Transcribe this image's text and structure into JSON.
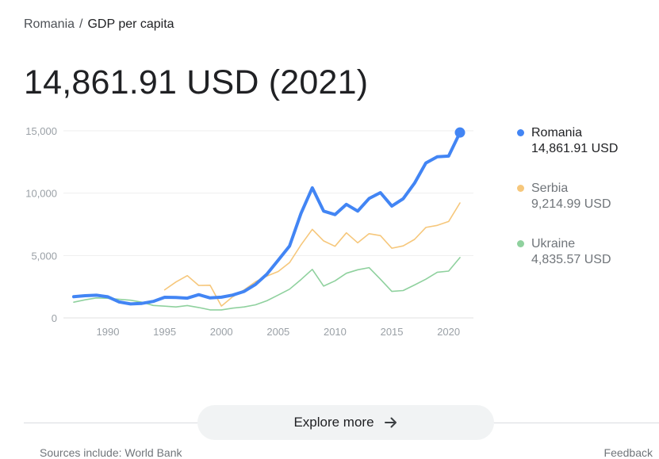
{
  "breadcrumb": {
    "parent": "Romania",
    "separator": "/",
    "current": "GDP per capita"
  },
  "headline": "14,861.91 USD (2021)",
  "legend": [
    {
      "name": "Romania",
      "value": "14,861.91 USD",
      "color": "#4285f4",
      "active": true
    },
    {
      "name": "Serbia",
      "value": "9,214.99 USD",
      "color": "#f6c77b",
      "active": false
    },
    {
      "name": "Ukraine",
      "value": "4,835.57 USD",
      "color": "#8fd19e",
      "active": false
    }
  ],
  "explore_button": {
    "label": "Explore more",
    "icon": "arrow-right-icon"
  },
  "footer": {
    "sources": "Sources include: World Bank",
    "feedback": "Feedback"
  },
  "chart_data": {
    "type": "line",
    "title": "",
    "xlabel": "",
    "ylabel": "",
    "xlim": [
      1987,
      2021
    ],
    "ylim": [
      0,
      15000
    ],
    "x_ticks": [
      1990,
      1995,
      2000,
      2005,
      2010,
      2015,
      2020
    ],
    "y_ticks": [
      0,
      5000,
      10000,
      15000
    ],
    "y_tick_labels": [
      "0",
      "5,000",
      "10,000",
      "15,000"
    ],
    "grid": true,
    "legend_position": "right",
    "series": [
      {
        "name": "Romania",
        "color": "#4285f4",
        "highlight": true,
        "x": [
          1987,
          1988,
          1989,
          1990,
          1991,
          1992,
          1993,
          1994,
          1995,
          1996,
          1997,
          1998,
          1999,
          2000,
          2001,
          2002,
          2003,
          2004,
          2005,
          2006,
          2007,
          2008,
          2009,
          2010,
          2011,
          2012,
          2013,
          2014,
          2015,
          2016,
          2017,
          2018,
          2019,
          2020,
          2021
        ],
        "y": [
          1700,
          1780,
          1820,
          1690,
          1280,
          1120,
          1160,
          1320,
          1650,
          1640,
          1580,
          1860,
          1600,
          1660,
          1830,
          2120,
          2680,
          3500,
          4620,
          5760,
          8370,
          10430,
          8560,
          8280,
          9100,
          8560,
          9570,
          10040,
          8970,
          9550,
          10800,
          12420,
          12920,
          12970,
          14861.91
        ]
      },
      {
        "name": "Serbia",
        "color": "#f6c77b",
        "highlight": false,
        "x": [
          1995,
          1996,
          1997,
          1998,
          1999,
          2000,
          2001,
          2002,
          2003,
          2004,
          2005,
          2006,
          2007,
          2008,
          2009,
          2010,
          2011,
          2012,
          2013,
          2014,
          2015,
          2016,
          2017,
          2018,
          2019,
          2020,
          2021
        ],
        "y": [
          2250,
          2880,
          3390,
          2600,
          2620,
          950,
          1700,
          2250,
          2900,
          3350,
          3720,
          4430,
          5850,
          7100,
          6170,
          5740,
          6820,
          6020,
          6750,
          6600,
          5590,
          5770,
          6290,
          7250,
          7420,
          7730,
          9214.99
        ]
      },
      {
        "name": "Ukraine",
        "color": "#8fd19e",
        "highlight": false,
        "x": [
          1987,
          1988,
          1989,
          1990,
          1991,
          1992,
          1993,
          1994,
          1995,
          1996,
          1997,
          1998,
          1999,
          2000,
          2001,
          2002,
          2003,
          2004,
          2005,
          2006,
          2007,
          2008,
          2009,
          2010,
          2011,
          2012,
          2013,
          2014,
          2015,
          2016,
          2017,
          2018,
          2019,
          2020,
          2021
        ],
        "y": [
          1260,
          1450,
          1600,
          1570,
          1490,
          1420,
          1260,
          1000,
          940,
          880,
          990,
          830,
          640,
          640,
          780,
          880,
          1050,
          1370,
          1830,
          2300,
          3070,
          3890,
          2550,
          2970,
          3580,
          3860,
          4030,
          3100,
          2120,
          2190,
          2640,
          3100,
          3660,
          3750,
          4835.57
        ]
      }
    ]
  }
}
